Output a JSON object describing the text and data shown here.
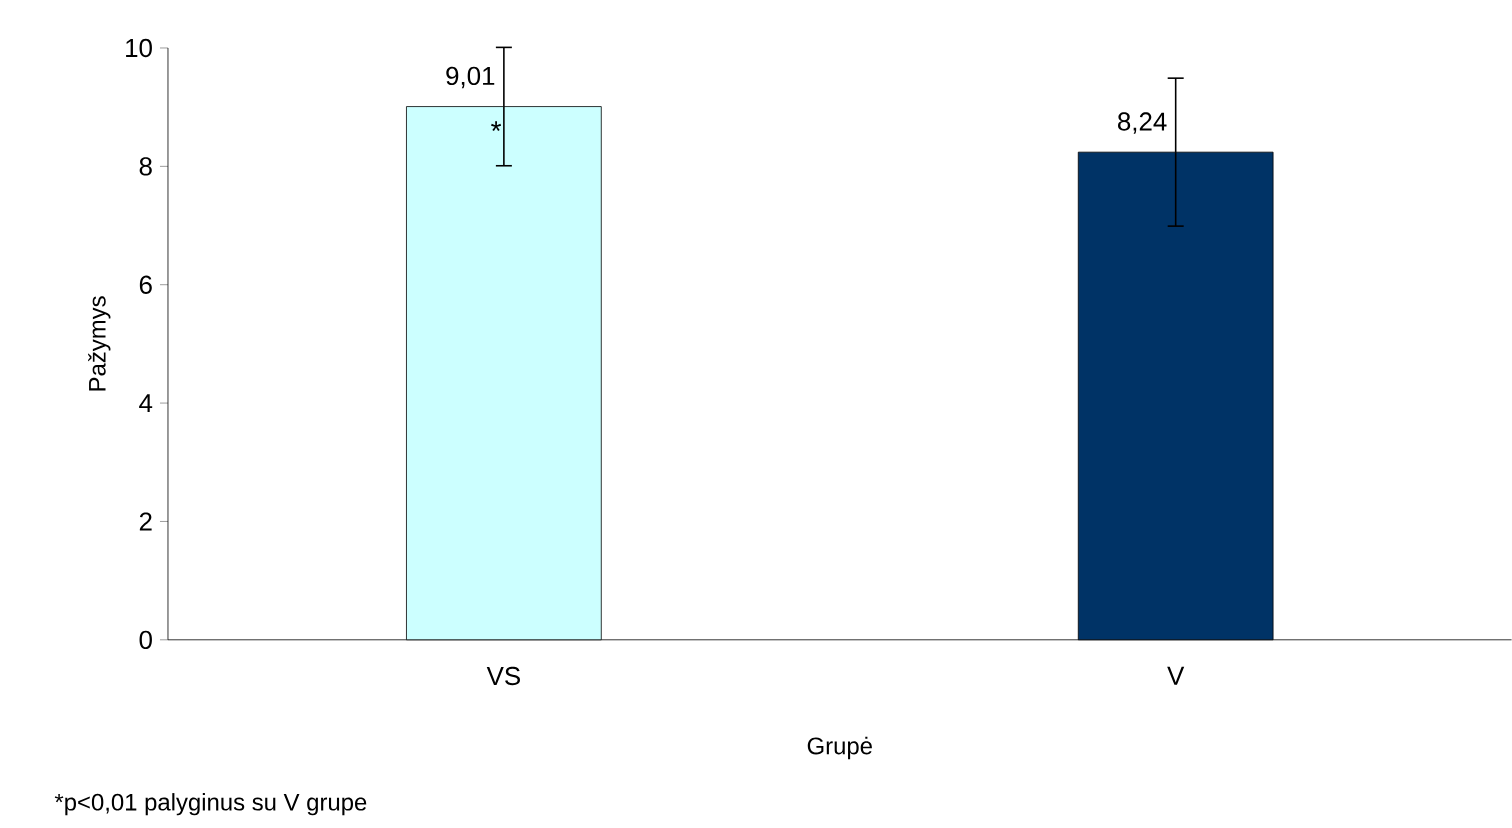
{
  "chart_data": {
    "type": "bar",
    "xlabel": "Grupė",
    "ylabel": "Pažymys",
    "categories": [
      "VS",
      "V"
    ],
    "values": [
      9.01,
      8.24
    ],
    "colors": [
      "#ccffff",
      "#003366"
    ],
    "errors": [
      1.0,
      1.25
    ],
    "value_labels": [
      "9,01",
      "8,24"
    ],
    "ylim": [
      0,
      10
    ],
    "yticks": [
      0,
      2,
      4,
      6,
      8,
      10
    ],
    "grid": false,
    "annotations": [
      {
        "text": "*",
        "x": "VS",
        "y": 8.6
      },
      "*p<0,01 palyginus su V grupe"
    ]
  }
}
